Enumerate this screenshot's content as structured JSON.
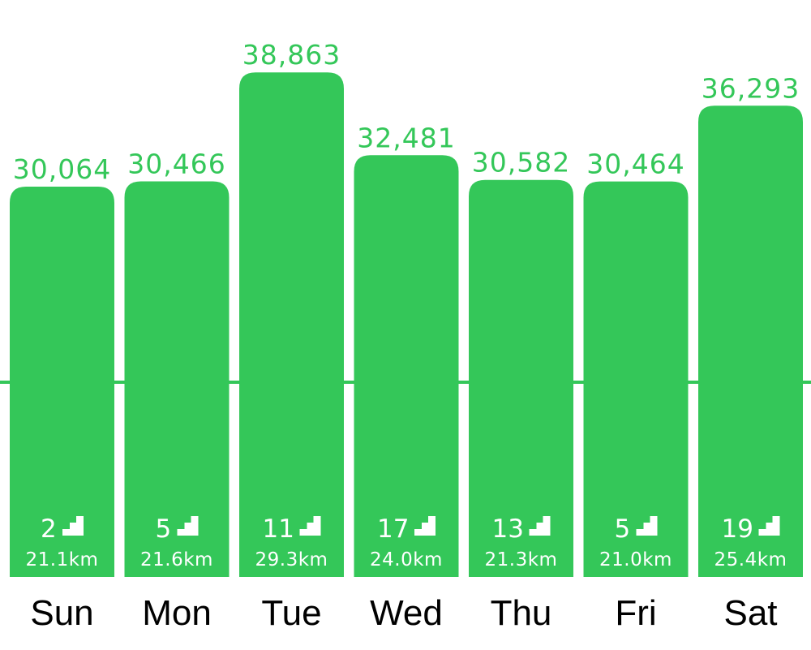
{
  "chart_data": {
    "type": "bar",
    "categories": [
      "Sun",
      "Mon",
      "Tue",
      "Wed",
      "Thu",
      "Fri",
      "Sat"
    ],
    "values": [
      30064,
      30466,
      38863,
      32481,
      30582,
      30464,
      36293
    ],
    "value_labels": [
      "30,064",
      "30,466",
      "38,863",
      "32,481",
      "30,582",
      "30,464",
      "36,293"
    ],
    "floors": [
      "2",
      "5",
      "11",
      "17",
      "13",
      "5",
      "19"
    ],
    "distances": [
      "21.1km",
      "21.6km",
      "29.3km",
      "24.0km",
      "21.3km",
      "21.0km",
      "25.4km"
    ],
    "goal_line": 15000,
    "ylim": [
      0,
      40000
    ],
    "title": "",
    "xlabel": "",
    "ylabel": "",
    "grid": false,
    "colors": {
      "bar": "#34C759",
      "value_text": "#34C759",
      "inner_text": "#ffffff",
      "day_text": "#000000",
      "goal_line": "#34C759"
    },
    "icons": {
      "floors": "stairs-icon"
    }
  }
}
